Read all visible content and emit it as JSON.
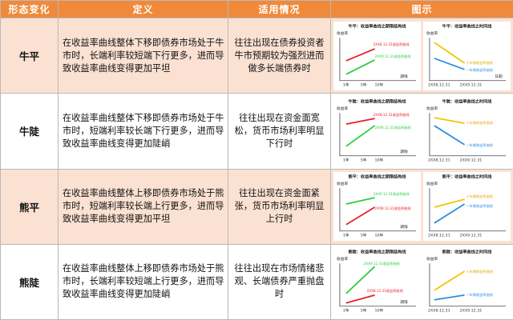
{
  "header": {
    "col1": "形态变化",
    "col2": "定义",
    "col3": "适用情况",
    "col4": "图示"
  },
  "rows": [
    {
      "name": "牛平",
      "definition": "在收益率曲线整体下移即债券市场处于牛市时，长端利率较短端下行更多，进而导致收益率曲线变得更加平坦",
      "situation": "往往出现在债券投资者牛市预期较为强烈进而做多长端债券时",
      "left": {
        "title": "牛平：收益率曲线之期限结构线",
        "ylabel": "收益率",
        "xlabel": "期限",
        "ticks": [
          "1年",
          "5年",
          "10年"
        ],
        "red_label": "2XX8.12.31收益率曲线",
        "green_label": "2XX9.12.31收益率曲线"
      },
      "right": {
        "title": "牛平：收益率曲线之时间线",
        "ylabel": "收益率",
        "xlabel": "日期",
        "ticks": [
          "2XX8.12.31",
          "2XX9.12.31"
        ],
        "upper_label": "十年期收益率曲线",
        "lower_label": "一年期收益率曲线"
      }
    },
    {
      "name": "牛陡",
      "definition": "在收益率曲线整体下移即债券市场处于牛市时，短端利率较长端下行更多，进而导致收益率曲线变得更加陡峭",
      "situation": "往往出现在资金面宽松，货币市场利率明显下行时",
      "left": {
        "title": "牛陡：收益率曲线之期限结构线",
        "ylabel": "收益率",
        "xlabel": "期限",
        "ticks": [
          "1年",
          "5年",
          "10年"
        ],
        "red_label": "2XX8.12.31收益率曲线",
        "green_label": "2XX9.12.31收益率曲线"
      },
      "right": {
        "title": "牛陡：收益率曲线之时间线",
        "ylabel": "收益率",
        "xlabel": "日期",
        "ticks": [
          "2XX8.12.31",
          "2XX9.12.31"
        ],
        "upper_label": "十年期收益率曲线",
        "lower_label": "一年期收益率曲线"
      }
    },
    {
      "name": "熊平",
      "definition": "在收益率曲线整体上移即债券市场处于熊市时，短端利率较长端上行更多，进而导致收益率曲线变得更加平坦",
      "situation": "往往出现在资金面紧张，货币市场利率明显上行时",
      "left": {
        "title": "熊平：收益率曲线之期限结构线",
        "ylabel": "收益率",
        "xlabel": "期限",
        "ticks": [
          "1年",
          "5年",
          "10年"
        ],
        "red_label": "2XX8.12.31收益率曲线",
        "green_label": "2XX9.12.31收益率曲线"
      },
      "right": {
        "title": "熊平：收益率曲线之时间线",
        "ylabel": "收益率",
        "xlabel": "日期",
        "ticks": [
          "2XX8.12.31",
          "2XX9.12.31"
        ],
        "upper_label": "十年期收益率曲线",
        "lower_label": "一年期收益率曲线"
      }
    },
    {
      "name": "熊陡",
      "definition": "在收益率曲线整体上移即债券市场处于熊市时，长端利率较短端上行更多，进而导致收益率曲线变得更加陡峭",
      "situation": "往往出现在市场情绪悲观、长端债券严重抛盘时",
      "left": {
        "title": "熊陡：收益率曲线之期限结构线",
        "ylabel": "收益率",
        "xlabel": "期限",
        "ticks": [
          "1年",
          "5年",
          "10年"
        ],
        "red_label": "2XX8.12.31收益率曲线",
        "green_label": "2XX9.12.31收益率曲线"
      },
      "right": {
        "title": "熊陡：收益率曲线之时间线",
        "ylabel": "收益率",
        "xlabel": "日期",
        "ticks": [
          "2XX8.12.31",
          "2XX9.12.31"
        ],
        "upper_label": "十年期收益率曲线",
        "lower_label": "一年期收益率曲线"
      }
    }
  ],
  "colors": {
    "header": "#f08a3a",
    "row_tint": "#fbe1d2",
    "red": "#e8202a",
    "green": "#2ecc40",
    "yellow": "#f5c400",
    "blue": "#2e8ee0"
  }
}
